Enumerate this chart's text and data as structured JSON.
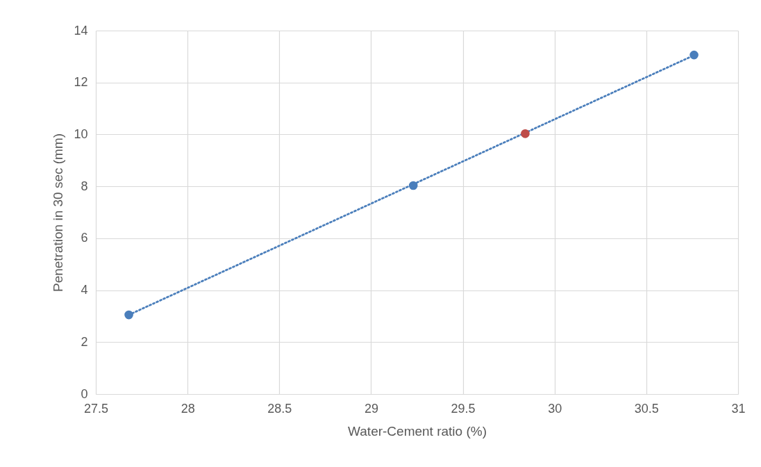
{
  "chart_data": {
    "type": "scatter",
    "xlabel": "Water-Cement ratio (%)",
    "ylabel": "Penetration in 30 sec (mm)",
    "xlim": [
      27.5,
      31
    ],
    "xticks": [
      27.5,
      28,
      28.5,
      29,
      29.5,
      30,
      30.5,
      31
    ],
    "ylim": [
      0,
      14
    ],
    "yticks": [
      0,
      2,
      4,
      6,
      8,
      10,
      12,
      14
    ],
    "grid": true,
    "marker": "circle",
    "series": [
      {
        "type": "line",
        "color": "#4a7ebb",
        "x": [
          27.68,
          30.76
        ],
        "values": [
          3.05,
          13.05
        ],
        "line_style": "dotted",
        "marker": "none"
      },
      {
        "color": "#4a7ebb",
        "x": [
          27.68,
          29.23,
          30.76
        ],
        "values": [
          3.05,
          8.03,
          13.06
        ]
      },
      {
        "color": "#be4b48",
        "x": [
          29.84
        ],
        "values": [
          10.03
        ]
      }
    ]
  }
}
